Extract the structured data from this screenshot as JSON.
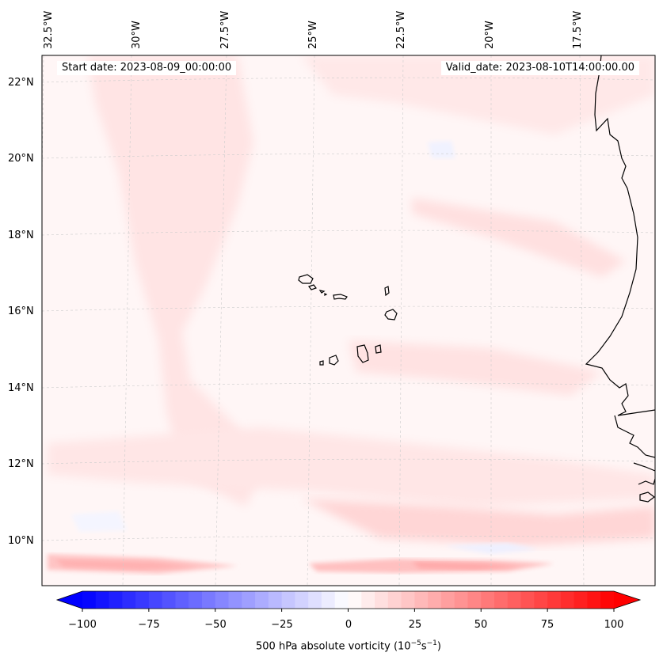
{
  "header": {
    "start_date": "Start date: 2023-08-09_00:00:00",
    "valid_date": "Valid_date: 2023-08-10T14:00:00.00"
  },
  "longitude_labels": [
    "32.5°W",
    "30°W",
    "27.5°W",
    "25°W",
    "22.5°W",
    "20°W",
    "17.5°W"
  ],
  "latitude_labels": [
    "22°N",
    "20°N",
    "18°N",
    "16°N",
    "14°N",
    "12°N",
    "10°N"
  ],
  "colorbar": {
    "ticks": [
      "−100",
      "−75",
      "−50",
      "−25",
      "0",
      "25",
      "50",
      "75",
      "100"
    ],
    "label_prefix": "500 hPa absolute vorticity (10",
    "label_exp1": "−5",
    "label_mid": "s",
    "label_exp2": "−1",
    "label_suffix": ")",
    "min": -100,
    "max": 100,
    "step": 5,
    "colors": {
      "negative": "#0000ff",
      "zero": "#ffffff",
      "positive": "#ff0000"
    }
  },
  "map_colors": {
    "background": "#fff6f6",
    "land_line": "#000000",
    "grid": "#cccccc"
  }
}
